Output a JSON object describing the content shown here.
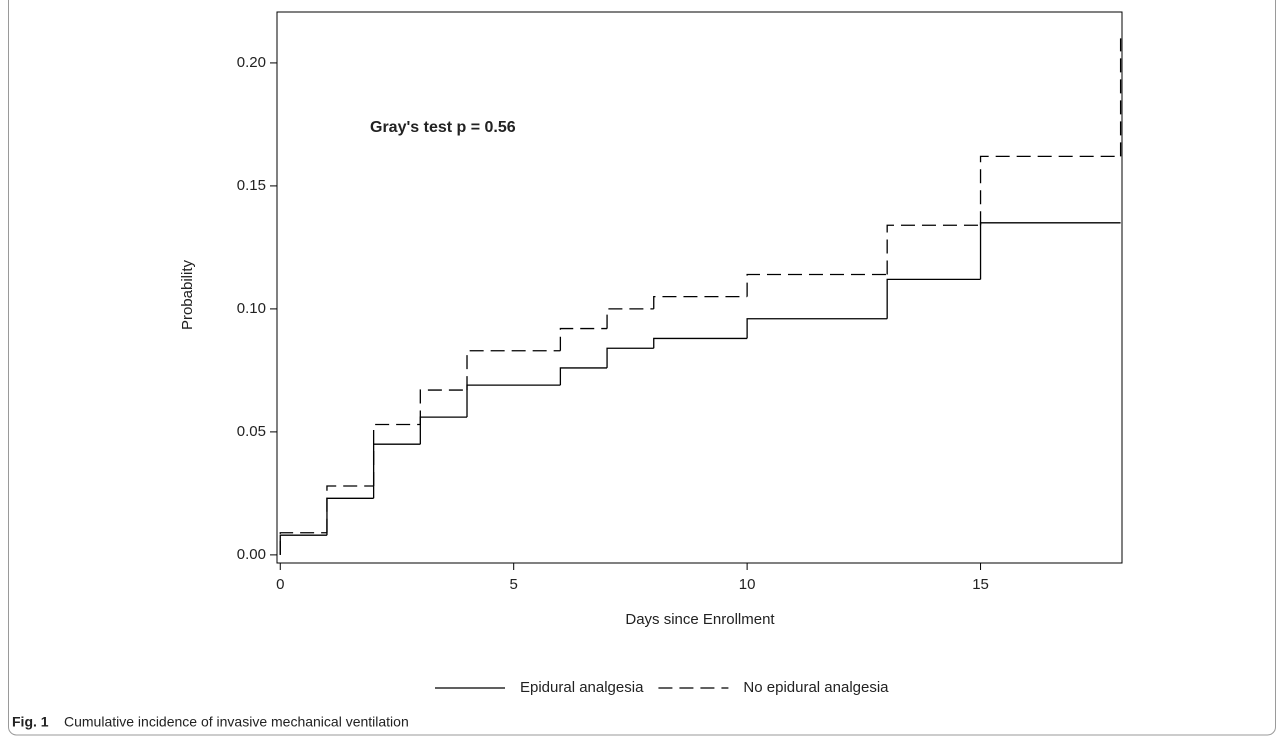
{
  "chart_data": {
    "type": "step",
    "annotation": "Gray's test p = 0.56",
    "x_label": "Days since Enrollment",
    "y_label": "Probability",
    "x": [
      0,
      0,
      1,
      2,
      3,
      4,
      6,
      7,
      8,
      10,
      13,
      15,
      18
    ],
    "series": [
      {
        "name": "Epidural analgesia",
        "color": "#000000",
        "dash": false,
        "values": [
          0,
          0.008,
          0.023,
          0.045,
          0.056,
          0.069,
          0.076,
          0.084,
          0.088,
          0.096,
          0.112,
          0.135,
          0.135
        ]
      },
      {
        "name": "No epidural analgesia",
        "color": "#000000",
        "dash": true,
        "values": [
          0,
          0.009,
          0.028,
          0.053,
          0.067,
          0.083,
          0.092,
          0.1,
          0.105,
          0.114,
          0.134,
          0.162,
          0.21
        ]
      }
    ],
    "xlim": [
      -0.07,
      18.03
    ],
    "ylim": [
      -0.0033,
      0.2207
    ],
    "xticks": [
      0,
      5,
      10,
      15
    ],
    "yticks": [
      {
        "value": 0,
        "label": "0.00"
      },
      0.05,
      {
        "value": 0.1,
        "label": "0.10"
      },
      0.15,
      {
        "value": 0.2,
        "label": "0.20"
      }
    ],
    "legend": "bottom",
    "caption": {
      "label": "Fig. 1",
      "text": "Cumulative incidence of invasive mechanical ventilation"
    }
  }
}
